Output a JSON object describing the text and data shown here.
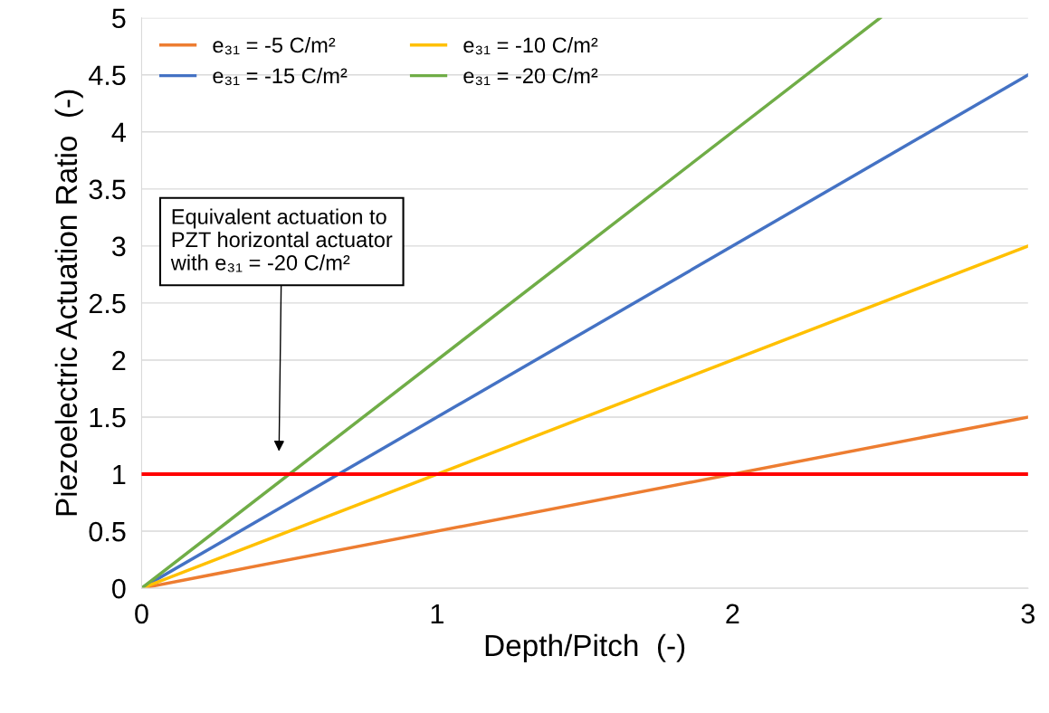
{
  "chart_data": {
    "type": "line",
    "xlabel": "Depth/Pitch  (-)",
    "ylabel": "Piezoelectric Actuation Ratio  (-)",
    "x": [
      0,
      3
    ],
    "series": [
      {
        "name": "e₃₁ = -5 C/m²",
        "color": "#ed7d31",
        "values": [
          0,
          1.5
        ]
      },
      {
        "name": "e₃₁ = -15 C/m²",
        "color": "#4472c4",
        "values": [
          0,
          4.5
        ]
      },
      {
        "name": "e₃₁ = -10 C/m²",
        "color": "#ffc000",
        "values": [
          0,
          3
        ]
      },
      {
        "name": "e₃₁ = -20 C/m²",
        "color": "#70ad47",
        "x": [
          0,
          2.5
        ],
        "values": [
          0,
          5
        ]
      }
    ],
    "xlim": [
      0,
      3
    ],
    "xticks": [
      0,
      1,
      2,
      3
    ],
    "ylim": [
      0,
      5
    ],
    "yticks": [
      0,
      0.5,
      1,
      1.5,
      2,
      2.5,
      3,
      3.5,
      4,
      4.5,
      5
    ],
    "ref_lines": [
      {
        "axis": "y",
        "value": 1,
        "color": "#ff0000",
        "line_style": "solid"
      }
    ],
    "annotations": [
      "Equivalent actuation to\nPZT horizontal actuator\nwith e₃₁ = -20 C/m²"
    ],
    "grid": "y",
    "legend": "top left",
    "marker": "none",
    "line_style": "solid"
  }
}
